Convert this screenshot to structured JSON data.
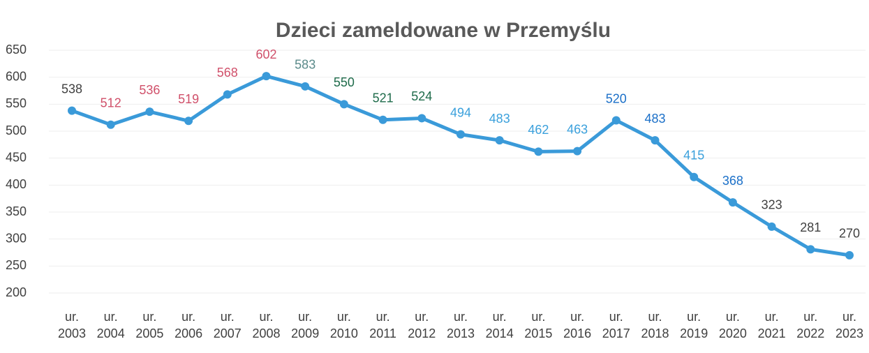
{
  "chart_data": {
    "type": "line",
    "title": "Dzieci zameldowane w Przemyślu",
    "categories": [
      "ur. 2003",
      "ur. 2004",
      "ur. 2005",
      "ur. 2006",
      "ur. 2007",
      "ur. 2008",
      "ur. 2009",
      "ur. 2010",
      "ur. 2011",
      "ur. 2012",
      "ur. 2013",
      "ur. 2014",
      "ur. 2015",
      "ur. 2016",
      "ur. 2017",
      "ur. 2018",
      "ur. 2019",
      "ur. 2020",
      "ur. 2021",
      "ur. 2022",
      "ur. 2023"
    ],
    "series": [
      {
        "name": "Dzieci",
        "color": "#3a9ad9",
        "values": [
          538,
          512,
          536,
          519,
          568,
          602,
          583,
          550,
          521,
          524,
          494,
          483,
          462,
          463,
          520,
          483,
          415,
          368,
          323,
          281,
          270
        ],
        "label_colors": [
          "#404040",
          "#d0506a",
          "#d0506a",
          "#d0506a",
          "#d0506a",
          "#d0506a",
          "#5a8a8a",
          "#1e6b4a",
          "#1e6b4a",
          "#1e6b4a",
          "#3aa0dc",
          "#3aa0dc",
          "#3aa0dc",
          "#3aa0dc",
          "#1a6fc8",
          "#1a6fc8",
          "#3aa0dc",
          "#1a6fc8",
          "#404040",
          "#404040",
          "#404040"
        ]
      }
    ],
    "ylim": [
      200,
      650
    ],
    "yticks": [
      200,
      250,
      300,
      350,
      400,
      450,
      500,
      550,
      600,
      650
    ],
    "grid": true
  }
}
